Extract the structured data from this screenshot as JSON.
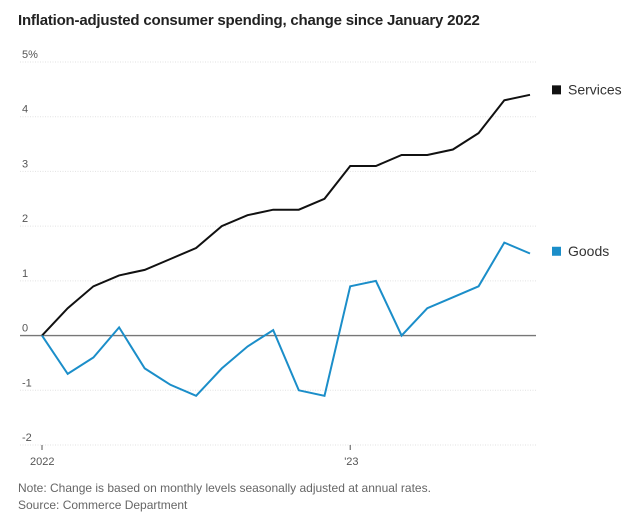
{
  "chart_data": {
    "type": "line",
    "title": "Inflation-adjusted consumer spending, change since January 2022",
    "x": [
      "2022-01",
      "2022-02",
      "2022-03",
      "2022-04",
      "2022-05",
      "2022-06",
      "2022-07",
      "2022-08",
      "2022-09",
      "2022-10",
      "2022-11",
      "2022-12",
      "2023-01",
      "2023-02",
      "2023-03",
      "2023-04",
      "2023-05",
      "2023-06",
      "2023-07",
      "2023-08"
    ],
    "x_tick_labels": [
      {
        "index": 0,
        "label": "2022"
      },
      {
        "index": 12,
        "label": "'23"
      }
    ],
    "y_tick_labels": [
      "5%",
      "4",
      "3",
      "2",
      "1",
      "0",
      "-1",
      "-2"
    ],
    "ylim": [
      -2,
      5
    ],
    "xlabel": "",
    "ylabel": "",
    "series": [
      {
        "name": "Services",
        "color": "#111111",
        "values": [
          0,
          0.5,
          0.9,
          1.1,
          1.2,
          1.4,
          1.6,
          2.0,
          2.2,
          2.3,
          2.3,
          2.5,
          3.1,
          3.1,
          3.3,
          3.3,
          3.4,
          3.7,
          4.3,
          4.4
        ]
      },
      {
        "name": "Goods",
        "color": "#1b8ec9",
        "values": [
          0,
          -0.7,
          -0.4,
          0.15,
          -0.6,
          -0.9,
          -1.1,
          -0.6,
          -0.2,
          0.1,
          -1.0,
          -1.1,
          0.9,
          1.0,
          0.0,
          0.5,
          0.7,
          0.9,
          1.7,
          1.5
        ]
      }
    ],
    "legend": "right",
    "grid": true
  },
  "notes": {
    "line1": "Note: Change is based on monthly levels seasonally adjusted at annual rates.",
    "line2": "Source: Commerce Department"
  }
}
